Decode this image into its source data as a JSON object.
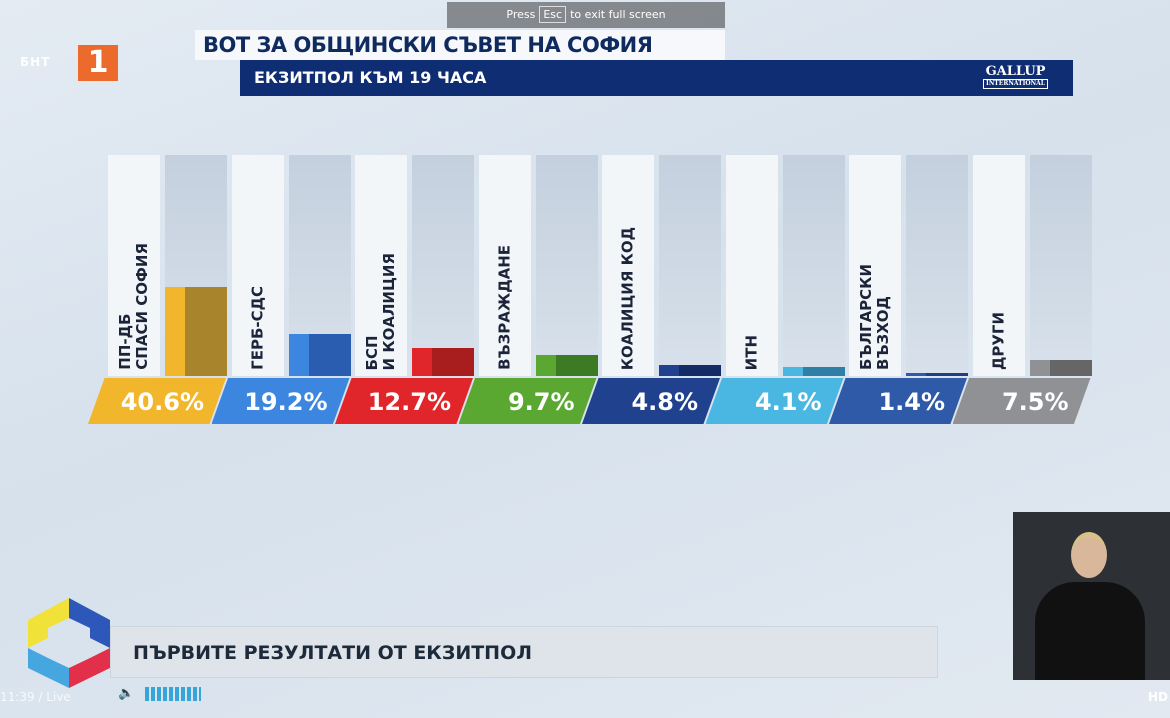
{
  "channel": {
    "name": "БНТ",
    "number": "1"
  },
  "header": {
    "title": "ВОТ ЗА ОБЩИНСКИ СЪВЕТ НА СОФИЯ",
    "subtitle": "ЕКЗИТПОЛ КЪМ 19 ЧАСА",
    "pollster": "GALLUP",
    "pollster_sub": "INTERNATIONAL"
  },
  "fullscreen_notice": {
    "press": "Press",
    "key": "Esc",
    "text": "to exit full screen"
  },
  "chart_data": {
    "type": "bar",
    "title": "ВОТ ЗА ОБЩИНСКИ СЪВЕТ НА СОФИЯ",
    "subtitle": "ЕКЗИТПОЛ КЪМ 19 ЧАСА",
    "categories": [
      "ПП-ДБ\nСПАСИ СОФИЯ",
      "ГЕРБ-СДС",
      "БСП\nИ КОАЛИЦИЯ",
      "ВЪЗРАЖДАНЕ",
      "КОАЛИЦИЯ КОД",
      "ИТН",
      "БЪЛГАРСКИ\nВЪЗХОД",
      "ДРУГИ"
    ],
    "values": [
      40.6,
      19.2,
      12.7,
      9.7,
      4.8,
      4.1,
      1.4,
      7.5
    ],
    "labels": [
      "40.6%",
      "19.2%",
      "12.7%",
      "9.7%",
      "4.8%",
      "4.1%",
      "1.4%",
      "7.5%"
    ],
    "colors": [
      "#f2b62c",
      "#3c86e0",
      "#e0262a",
      "#5aa832",
      "#1f418e",
      "#4ab7e2",
      "#2f5aa8",
      "#8f9194"
    ],
    "colors_dark": [
      "#a8852c",
      "#2a5cb0",
      "#a81e1e",
      "#3d7a24",
      "#142c66",
      "#2e7fa8",
      "#203f7a",
      "#666666"
    ],
    "ylim": [
      0,
      100
    ],
    "grid": false
  },
  "ticker": {
    "text": "ПЪРВИТЕ РЕЗУЛТАТИ ОТ ЕКЗИТПОЛ"
  },
  "player": {
    "time": "11:39 / Live",
    "quality": "HD",
    "volume": 1.0
  }
}
